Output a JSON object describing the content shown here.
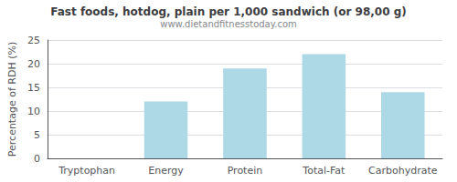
{
  "chart_data": {
    "type": "bar",
    "title": "Fast foods, hotdog, plain per 1,000 sandwich (or 98,00 g)",
    "subtitle": "www.dietandfitnesstoday.com",
    "categories": [
      "Tryptophan",
      "Energy",
      "Protein",
      "Total-Fat",
      "Carbohydrate"
    ],
    "values": [
      0,
      12,
      19,
      22,
      14
    ],
    "color": "#add8e6",
    "ylabel": "Percentage of RDH (%)",
    "ylim": [
      0,
      25
    ],
    "yticks": [
      0,
      5,
      10,
      15,
      20,
      25
    ],
    "grid": true
  }
}
